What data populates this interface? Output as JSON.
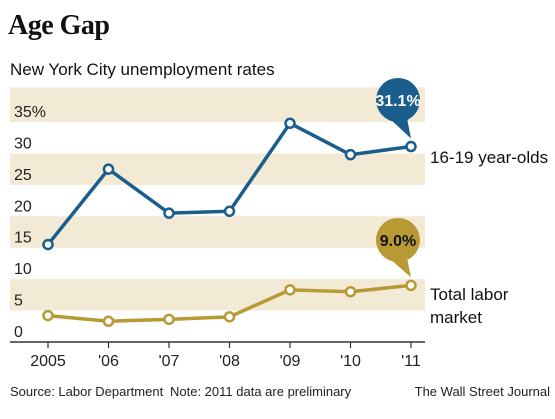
{
  "title": "Age Gap",
  "subtitle": "New York City unemployment rates",
  "source": "Source: Labor Department",
  "note": "Note: 2011 data are preliminary",
  "credit": "The Wall Street Journal",
  "chart_data": {
    "type": "line",
    "x": [
      "2005",
      "'06",
      "'07",
      "'08",
      "'09",
      "'10",
      "'11"
    ],
    "yticks": [
      "0",
      "5",
      "10",
      "15",
      "20",
      "25",
      "30",
      "35%"
    ],
    "ylim": [
      0,
      35
    ],
    "grid": "alternating horizontal bands",
    "series": [
      {
        "name": "16-19 year-olds",
        "values": [
          15.5,
          27.5,
          20.5,
          20.8,
          34.8,
          29.8,
          31.1
        ],
        "color": "#1b5d8c",
        "callout": "31.1%"
      },
      {
        "name": "Total labor market",
        "values": [
          4.2,
          3.3,
          3.6,
          4.0,
          8.3,
          8.0,
          9.0
        ],
        "color": "#b89a35",
        "callout": "9.0%"
      }
    ]
  },
  "colors": {
    "band": "#f2ead4",
    "youth": "#1b5d8c",
    "total": "#b89a35"
  }
}
